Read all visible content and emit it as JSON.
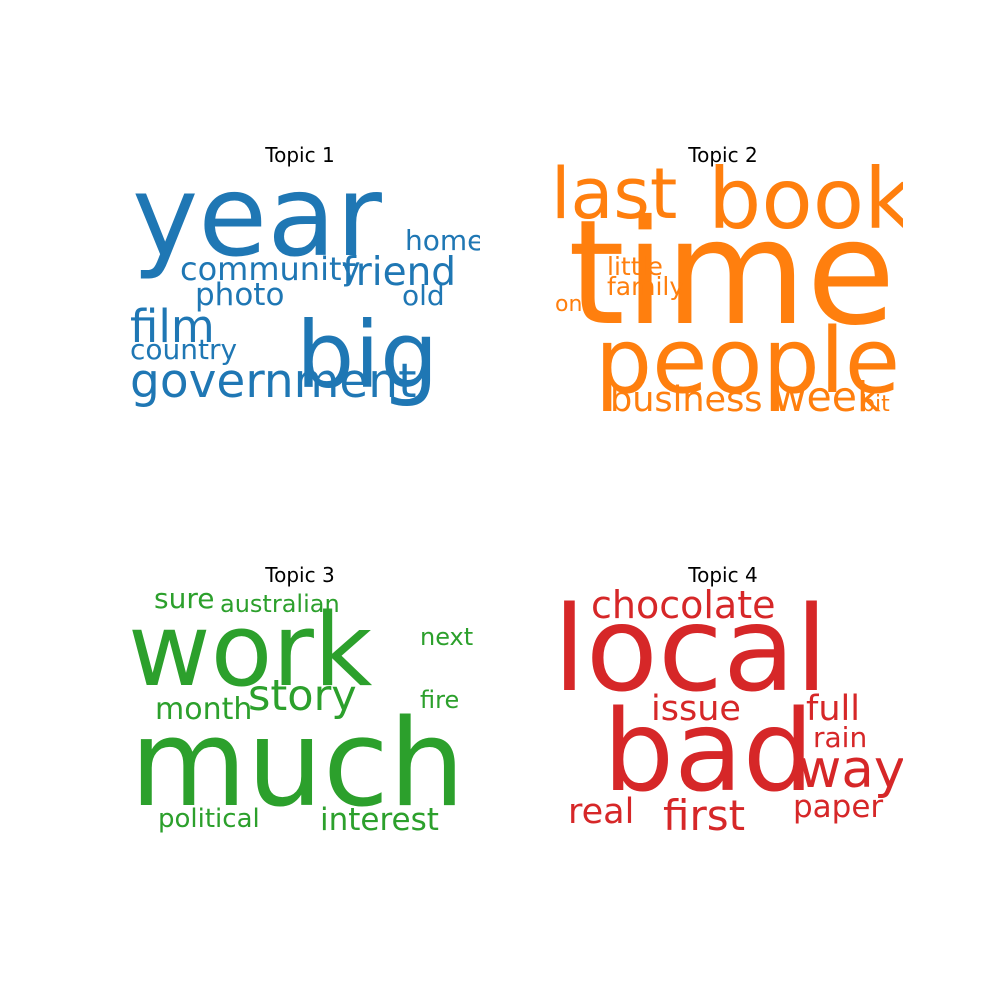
{
  "chart_data": [
    {
      "type": "wordcloud",
      "title": "Topic 1",
      "color": "#1f77b4",
      "words": [
        {
          "text": "year",
          "weight": 1.0
        },
        {
          "text": "big",
          "weight": 0.82
        },
        {
          "text": "government",
          "weight": 0.42
        },
        {
          "text": "film",
          "weight": 0.4
        },
        {
          "text": "friend",
          "weight": 0.35
        },
        {
          "text": "community",
          "weight": 0.29
        },
        {
          "text": "photo",
          "weight": 0.28
        },
        {
          "text": "home",
          "weight": 0.25
        },
        {
          "text": "old",
          "weight": 0.25
        },
        {
          "text": "country",
          "weight": 0.25
        }
      ]
    },
    {
      "type": "wordcloud",
      "title": "Topic 2",
      "color": "#ff7f0e",
      "words": [
        {
          "text": "time",
          "weight": 1.0
        },
        {
          "text": "people",
          "weight": 0.62
        },
        {
          "text": "book",
          "weight": 0.58
        },
        {
          "text": "last",
          "weight": 0.48
        },
        {
          "text": "week",
          "weight": 0.28
        },
        {
          "text": "business",
          "weight": 0.24
        },
        {
          "text": "little",
          "weight": 0.17
        },
        {
          "text": "family",
          "weight": 0.17
        },
        {
          "text": "bit",
          "weight": 0.15
        },
        {
          "text": "one",
          "weight": 0.15
        }
      ]
    },
    {
      "type": "wordcloud",
      "title": "Topic 3",
      "color": "#2ca02c",
      "words": [
        {
          "text": "much",
          "weight": 1.0
        },
        {
          "text": "work",
          "weight": 0.84
        },
        {
          "text": "story",
          "weight": 0.36
        },
        {
          "text": "interest",
          "weight": 0.26
        },
        {
          "text": "month",
          "weight": 0.25
        },
        {
          "text": "sure",
          "weight": 0.23
        },
        {
          "text": "political",
          "weight": 0.22
        },
        {
          "text": "australian",
          "weight": 0.2
        },
        {
          "text": "next",
          "weight": 0.2
        },
        {
          "text": "fire",
          "weight": 0.2
        }
      ]
    },
    {
      "type": "wordcloud",
      "title": "Topic 4",
      "color": "#d62728",
      "words": [
        {
          "text": "local",
          "weight": 1.0
        },
        {
          "text": "bad",
          "weight": 0.95
        },
        {
          "text": "way",
          "weight": 0.45
        },
        {
          "text": "first",
          "weight": 0.36
        },
        {
          "text": "chocolate",
          "weight": 0.32
        },
        {
          "text": "issue",
          "weight": 0.3
        },
        {
          "text": "full",
          "weight": 0.3
        },
        {
          "text": "real",
          "weight": 0.3
        },
        {
          "text": "paper",
          "weight": 0.26
        },
        {
          "text": "rain",
          "weight": 0.24
        }
      ]
    }
  ]
}
